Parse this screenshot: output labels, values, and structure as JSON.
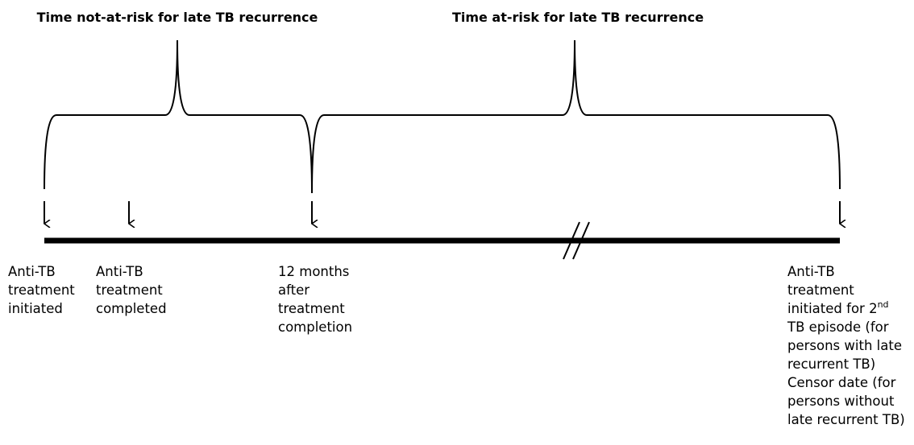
{
  "headings": [
    "Time not-at-risk for late TB recurrence",
    "Time at-risk for late TB recurrence"
  ],
  "labels": [
    {
      "lines": [
        "Anti-TB",
        "treatment",
        "initiated"
      ]
    },
    {
      "lines": [
        "Anti-TB",
        "treatment",
        "completed"
      ]
    },
    {
      "lines": [
        "12 months",
        "after",
        "treatment",
        "completion"
      ]
    },
    {
      "lines": [
        "Anti-TB",
        "treatment",
        {
          "text": "initiated for 2",
          "sup": "nd"
        },
        "TB episode (for",
        "persons with late",
        "recurrent TB)",
        "Censor date (for",
        "persons without",
        "late recurrent TB)"
      ]
    }
  ]
}
